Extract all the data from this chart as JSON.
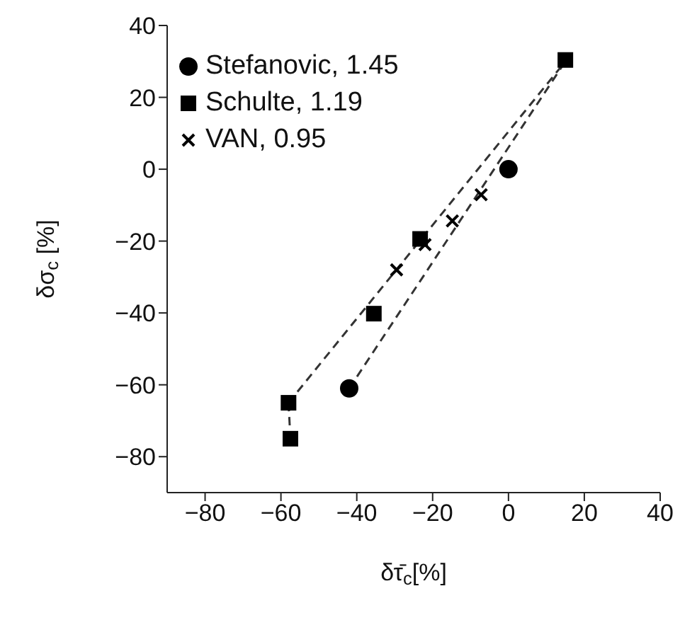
{
  "chart_data": {
    "type": "scatter",
    "xlabel": "δτ̄$_{c}$[%]",
    "ylabel": "δσ$_{c}$ [%]",
    "xlim": [
      -90,
      40
    ],
    "ylim": [
      -90,
      40
    ],
    "xticks": [
      -80,
      -60,
      -40,
      -20,
      0,
      20,
      40
    ],
    "yticks": [
      -80,
      -60,
      -40,
      -20,
      0,
      20,
      40
    ],
    "grid": false,
    "legend": "top left",
    "series": [
      {
        "name": "Stefanovic, 1.45",
        "color": "#000000",
        "marker": "circle",
        "x": [
          0,
          -42
        ],
        "values": [
          0,
          -61
        ]
      },
      {
        "name": "Schulte, 1.19",
        "color": "#000000",
        "marker": "square",
        "x": [
          15,
          -23.3,
          -35.5,
          -58,
          -57.5
        ],
        "values": [
          30.4,
          -19.4,
          -40.2,
          -65,
          -75
        ]
      },
      {
        "name": "VAN, 0.95",
        "color": "#000000",
        "marker": "cross",
        "x": [
          -29.5,
          -22,
          -14.8,
          -7.2
        ],
        "values": [
          -28,
          -21,
          -14.4,
          -7.1
        ]
      },
      {
        "type": "line",
        "color": "#333333",
        "line_style": "dashed",
        "marker": "none",
        "x": [
          -58,
          15
        ],
        "values": [
          -65,
          30
        ]
      },
      {
        "type": "line",
        "color": "#333333",
        "line_style": "dashed",
        "marker": "none",
        "x": [
          -42,
          15
        ],
        "values": [
          -61,
          30
        ]
      },
      {
        "type": "line",
        "color": "#333333",
        "line_style": "dashed",
        "marker": "none",
        "x": [
          -58,
          -57.5
        ],
        "values": [
          -65,
          -75
        ]
      }
    ]
  }
}
